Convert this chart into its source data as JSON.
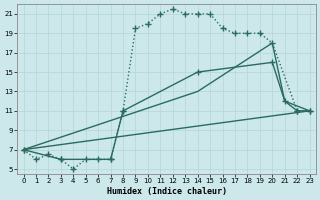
{
  "xlabel": "Humidex (Indice chaleur)",
  "bg_color": "#cce8ea",
  "grid_color": "#b8d8dc",
  "line_color": "#2a6b5e",
  "xlim_min": -0.5,
  "xlim_max": 23.5,
  "ylim_min": 4.5,
  "ylim_max": 22,
  "xticks": [
    0,
    1,
    2,
    3,
    4,
    5,
    6,
    7,
    8,
    9,
    10,
    11,
    12,
    13,
    14,
    15,
    16,
    17,
    18,
    19,
    20,
    21,
    22,
    23
  ],
  "yticks": [
    5,
    7,
    9,
    11,
    13,
    15,
    17,
    19,
    21
  ],
  "series": [
    {
      "x": [
        0,
        1,
        2,
        3,
        4,
        5,
        6,
        7,
        8,
        9,
        10,
        11,
        12,
        13,
        14,
        15,
        16,
        17,
        18,
        19,
        20,
        22,
        23
      ],
      "y": [
        7,
        6,
        6.5,
        6,
        5,
        6,
        6,
        6,
        11,
        19.5,
        20,
        21,
        21.5,
        21,
        21,
        21,
        19.5,
        19,
        19,
        19,
        18,
        11,
        11
      ],
      "linestyle": ":",
      "marker": "+",
      "markersize": 4,
      "linewidth": 1.0,
      "has_marker": true
    },
    {
      "x": [
        0,
        3,
        7,
        8,
        14,
        20,
        21,
        22,
        23
      ],
      "y": [
        7,
        6,
        6,
        11,
        15,
        16,
        12,
        11,
        11
      ],
      "linestyle": "-",
      "marker": "+",
      "markersize": 4,
      "linewidth": 1.0,
      "has_marker": true
    },
    {
      "x": [
        0,
        14,
        20,
        21,
        23
      ],
      "y": [
        7,
        13,
        18,
        12,
        11
      ],
      "linestyle": "-",
      "marker": null,
      "markersize": 0,
      "linewidth": 1.0,
      "has_marker": false
    },
    {
      "x": [
        0,
        23
      ],
      "y": [
        7,
        11
      ],
      "linestyle": "-",
      "marker": null,
      "markersize": 0,
      "linewidth": 1.0,
      "has_marker": false
    }
  ]
}
